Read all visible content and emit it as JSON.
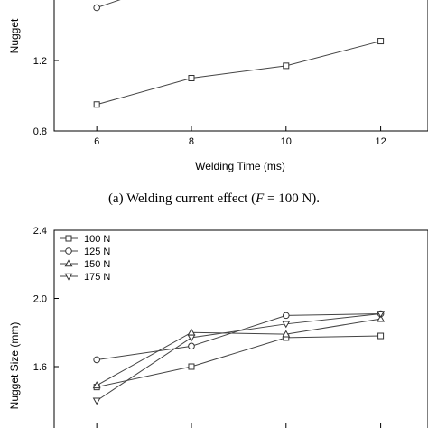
{
  "figure_caption": {
    "prefix": "(a) Welding current effect (",
    "var": "F",
    "suffix": " = 100 N)."
  },
  "chart_data": [
    {
      "type": "line",
      "xlabel": "Welding Time (ms)",
      "ylabel": "Nugget",
      "x": [
        6,
        8,
        10,
        12
      ],
      "xticks": [
        "6",
        "8",
        "10",
        "12"
      ],
      "yticks": [
        "0.8",
        "1.2"
      ],
      "xlim": [
        5.1,
        13
      ],
      "ylim": [
        0.8,
        1.6
      ],
      "series": [
        {
          "marker": "square",
          "values": [
            0.95,
            1.1,
            1.17,
            1.31
          ]
        },
        {
          "marker": "circle",
          "values": [
            1.5,
            null,
            null,
            null
          ],
          "partial_end": [
            7.2,
            1.61
          ]
        }
      ]
    },
    {
      "type": "line",
      "xlabel": "",
      "ylabel": "Nugget Size (mm)",
      "x": [
        6,
        8,
        10,
        12
      ],
      "yticks": [
        "1.6",
        "2.0",
        "2.4"
      ],
      "xlim": [
        5.1,
        13
      ],
      "ylim": [
        1.2,
        2.4
      ],
      "legend": "top-left",
      "series": [
        {
          "name": "100 N",
          "marker": "square",
          "values": [
            1.48,
            1.6,
            1.77,
            1.78
          ]
        },
        {
          "name": "125 N",
          "marker": "circle",
          "values": [
            1.64,
            1.72,
            1.9,
            1.91
          ]
        },
        {
          "name": "150 N",
          "marker": "triangle-up",
          "values": [
            1.49,
            1.8,
            1.79,
            1.88
          ]
        },
        {
          "name": "175 N",
          "marker": "triangle-down",
          "values": [
            1.4,
            1.77,
            1.85,
            1.91
          ]
        }
      ]
    }
  ]
}
